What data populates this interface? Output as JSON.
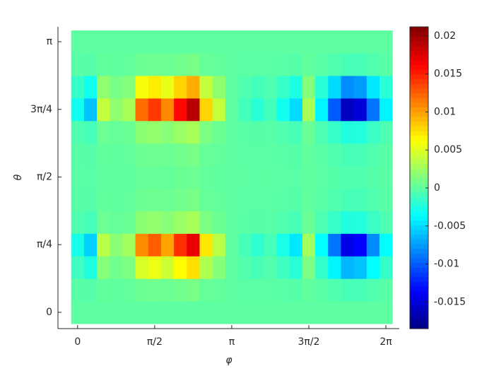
{
  "chart_data": {
    "type": "heatmap",
    "colormap": "jet",
    "x_label": "φ",
    "y_label": "θ",
    "x": [
      0,
      0.2618,
      0.5236,
      0.7854,
      1.0472,
      1.309,
      1.5708,
      1.8326,
      2.0944,
      2.3562,
      2.618,
      2.8798,
      3.1416,
      3.4034,
      3.6652,
      3.927,
      4.1888,
      4.4506,
      4.7124,
      4.9742,
      5.236,
      5.4978,
      5.7596,
      6.0214,
      6.2832
    ],
    "y": [
      0,
      0.2618,
      0.5236,
      0.7854,
      1.0472,
      1.309,
      1.5708,
      1.8326,
      2.0944,
      2.3562,
      2.618,
      2.8798,
      3.1416
    ],
    "z": [
      [
        0,
        0,
        0,
        0,
        0,
        0,
        0,
        0,
        0,
        0,
        0,
        0,
        0,
        0,
        0,
        0,
        0,
        0,
        0,
        0,
        0,
        0,
        0,
        0,
        0
      ],
      [
        -0.0002,
        -0.0003,
        0.0002,
        0.0001,
        0.0002,
        0.0006,
        0.0007,
        0.0006,
        0.0008,
        0.001,
        0.0004,
        0.0002,
        0,
        -0.0001,
        -0.0001,
        -0.0001,
        -0.0002,
        -0.0003,
        0.0002,
        -0.0002,
        -0.0005,
        -0.0008,
        -0.0008,
        -0.0005,
        -0.0002
      ],
      [
        -0.0012,
        -0.0024,
        0.0016,
        0.0008,
        0.0012,
        0.0048,
        0.0056,
        0.0044,
        0.0064,
        0.0076,
        0.0032,
        0.0016,
        0,
        -0.0004,
        -0.0008,
        -0.0004,
        -0.0012,
        -0.002,
        0.0012,
        -0.0016,
        -0.004,
        -0.0064,
        -0.006,
        -0.0036,
        -0.0016
      ],
      [
        -0.0027,
        -0.0054,
        0.0036,
        0.0018,
        0.0027,
        0.0108,
        0.0126,
        0.0099,
        0.0144,
        0.0171,
        0.0072,
        0.0036,
        0,
        -0.0009,
        -0.0018,
        -0.0009,
        -0.0027,
        -0.0045,
        0.0027,
        -0.0036,
        -0.009,
        -0.0144,
        -0.0135,
        -0.0081,
        -0.0036
      ],
      [
        -0.0005,
        -0.0009,
        0.0006,
        0.0003,
        0.0005,
        0.0018,
        0.0021,
        0.0017,
        0.0024,
        0.0029,
        0.0012,
        0.0006,
        0,
        -0.0002,
        -0.0003,
        -0.0002,
        -0.0005,
        -0.0008,
        0.0005,
        -0.0006,
        -0.0015,
        -0.0024,
        -0.0023,
        -0.0014,
        -0.0006
      ],
      [
        -0.0002,
        -0.0003,
        0.0002,
        0.0001,
        0.0002,
        0.0006,
        0.0007,
        0.0006,
        0.0008,
        0.001,
        0.0004,
        0.0002,
        0,
        -0.0001,
        -0.0001,
        -0.0001,
        -0.0002,
        -0.0003,
        0.0002,
        -0.0002,
        -0.0005,
        -0.0008,
        -0.0008,
        -0.0005,
        -0.0002
      ],
      [
        -0.0001,
        -0.0002,
        0.0001,
        0.0001,
        0.0001,
        0.0004,
        0.0004,
        0.0003,
        0.0005,
        0.0006,
        0.0002,
        0.0001,
        0,
        0,
        -0.0001,
        0,
        -0.0001,
        -0.0002,
        0.0001,
        -0.0001,
        -0.0003,
        -0.0005,
        -0.0005,
        -0.0003,
        -0.0001
      ],
      [
        -0.0002,
        -0.0003,
        0.0002,
        0.0001,
        0.0002,
        0.0006,
        0.0007,
        0.0006,
        0.0008,
        0.001,
        0.0004,
        0.0002,
        0,
        -0.0001,
        -0.0001,
        -0.0001,
        -0.0002,
        -0.0003,
        0.0002,
        -0.0002,
        -0.0005,
        -0.0008,
        -0.0008,
        -0.0005,
        -0.0002
      ],
      [
        -0.0005,
        -0.0009,
        0.0006,
        0.0003,
        0.0005,
        0.0018,
        0.0021,
        0.0017,
        0.0024,
        0.0029,
        0.0012,
        0.0006,
        0,
        -0.0002,
        -0.0003,
        -0.0002,
        -0.0005,
        -0.0008,
        0.0005,
        -0.0006,
        -0.0015,
        -0.0024,
        -0.0023,
        -0.0014,
        -0.0006
      ],
      [
        -0.003,
        -0.006,
        0.004,
        0.002,
        0.003,
        0.012,
        0.014,
        0.011,
        0.016,
        0.019,
        0.008,
        0.004,
        0,
        -0.001,
        -0.002,
        -0.001,
        -0.003,
        -0.005,
        0.003,
        -0.004,
        -0.01,
        -0.016,
        -0.015,
        -0.009,
        -0.004
      ],
      [
        -0.0015,
        -0.003,
        0.002,
        0.001,
        0.0015,
        0.006,
        0.007,
        0.0055,
        0.008,
        0.0095,
        0.004,
        0.002,
        0,
        -0.0005,
        -0.001,
        -0.0005,
        -0.0015,
        -0.0025,
        0.0015,
        -0.002,
        -0.005,
        -0.008,
        -0.0075,
        -0.0045,
        -0.002
      ],
      [
        -0.0002,
        -0.0003,
        0.0002,
        0.0001,
        0.0002,
        0.0006,
        0.0007,
        0.0006,
        0.0008,
        0.001,
        0.0004,
        0.0002,
        0,
        -0.0001,
        -0.0001,
        -0.0001,
        -0.0002,
        -0.0003,
        0.0002,
        -0.0002,
        -0.0005,
        -0.0008,
        -0.0008,
        -0.0005,
        -0.0002
      ],
      [
        0,
        0,
        0,
        0,
        0,
        0,
        0,
        0,
        0,
        0,
        0,
        0,
        0,
        0,
        0,
        0,
        0,
        0,
        0,
        0,
        0,
        0,
        0,
        0,
        0
      ]
    ],
    "xlim": [
      -0.4,
      6.556
    ],
    "ylim": [
      -0.189,
      3.314
    ],
    "xticks": [
      0,
      {
        "value": 1.5708,
        "label": "π/2"
      },
      {
        "value": 3.1416,
        "label": "π"
      },
      {
        "value": 4.7124,
        "label": "3π/2"
      },
      {
        "value": 6.2832,
        "label": "2π"
      }
    ],
    "yticks": [
      0,
      {
        "value": 0.7854,
        "label": "π/4"
      },
      {
        "value": 1.5708,
        "label": "π/2"
      },
      {
        "value": 2.3562,
        "label": "3π/4"
      },
      {
        "value": 3.1416,
        "label": "π"
      }
    ],
    "clim": [
      -0.0185,
      0.0212
    ],
    "cticks": [
      -0.015,
      -0.01,
      -0.005,
      0,
      0.005,
      0.01,
      0.015,
      0.02
    ]
  }
}
